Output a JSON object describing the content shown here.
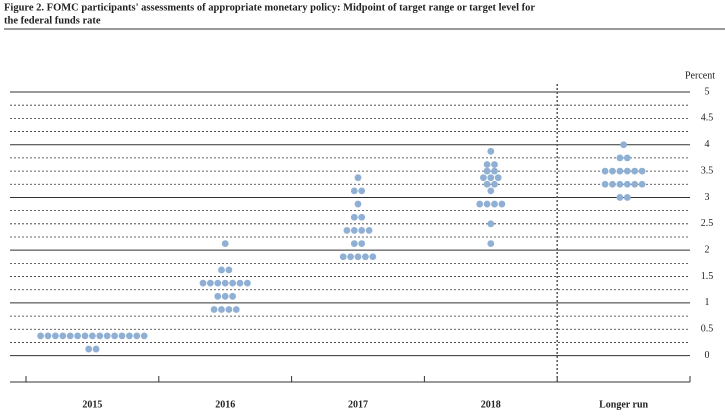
{
  "chart_data": {
    "type": "dot",
    "title_lines": [
      "Figure 2. FOMC participants' assessments of appropriate monetary policy: Midpoint of target range or target level for",
      "the federal funds rate"
    ],
    "y_axis_label": "Percent",
    "categories": [
      "2015",
      "2016",
      "2017",
      "2018",
      "Longer run"
    ],
    "values": [
      [
        0.375,
        0.375,
        0.375,
        0.375,
        0.375,
        0.375,
        0.375,
        0.375,
        0.375,
        0.375,
        0.375,
        0.375,
        0.375,
        0.375,
        0.375,
        0.125,
        0.125
      ],
      [
        2.125,
        1.625,
        1.625,
        1.375,
        1.375,
        1.375,
        1.375,
        1.375,
        1.375,
        1.375,
        1.125,
        1.125,
        1.125,
        0.875,
        0.875,
        0.875,
        0.875
      ],
      [
        3.375,
        3.125,
        3.125,
        2.875,
        2.625,
        2.625,
        2.375,
        2.375,
        2.375,
        2.375,
        2.125,
        2.125,
        1.875,
        1.875,
        1.875,
        1.875,
        1.875
      ],
      [
        3.875,
        3.625,
        3.625,
        3.5,
        3.5,
        3.375,
        3.375,
        3.375,
        3.25,
        3.25,
        3.125,
        2.875,
        2.875,
        2.875,
        2.875,
        2.5,
        2.125
      ],
      [
        4,
        3.75,
        3.75,
        3.5,
        3.5,
        3.5,
        3.5,
        3.5,
        3.5,
        3.25,
        3.25,
        3.25,
        3.25,
        3.25,
        3.25,
        3,
        3
      ]
    ],
    "color": "#8fb0d4",
    "ylim": [
      -0.5,
      5
    ],
    "yticks": [
      0,
      0.5,
      1,
      1.5,
      2,
      2.5,
      3,
      3.5,
      4,
      4.5,
      5
    ],
    "yminor": [
      0.25,
      0.75,
      1.25,
      1.75,
      2.25,
      2.75,
      3.25,
      3.75,
      4.25,
      4.75
    ],
    "grid": true
  }
}
